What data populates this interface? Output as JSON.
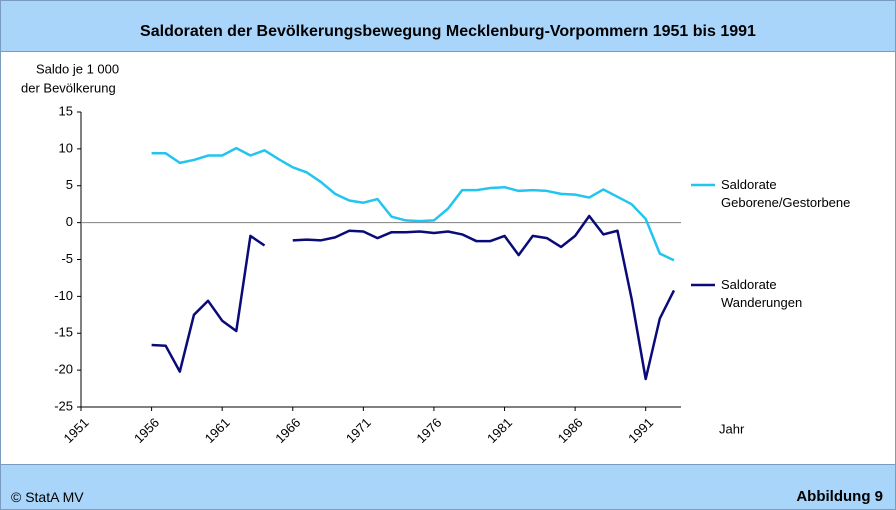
{
  "chart_data": {
    "type": "line",
    "title": "Saldoraten der Bevölkerungsbewegung Mecklenburg-Vorpommern 1951 bis 1991",
    "y_label": [
      "Saldo je 1 000",
      "der Bevölkerung"
    ],
    "x_label": "Jahr",
    "x": [
      1956,
      1957,
      1958,
      1959,
      1960,
      1961,
      1962,
      1963,
      1964,
      1965,
      1966,
      1967,
      1968,
      1969,
      1970,
      1971,
      1972,
      1973,
      1974,
      1975,
      1976,
      1977,
      1978,
      1979,
      1980,
      1981,
      1982,
      1983,
      1984,
      1985,
      1986,
      1987,
      1988,
      1989,
      1990,
      1991,
      1992,
      1993
    ],
    "series": [
      {
        "name": "Saldorate Geborene/Gestorbene",
        "color": "#22c4f0",
        "values": [
          9.4,
          9.4,
          8.1,
          8.5,
          9.1,
          9.1,
          10.1,
          9.1,
          9.8,
          8.6,
          7.5,
          6.8,
          5.5,
          3.9,
          3.0,
          2.7,
          3.2,
          0.8,
          0.3,
          0.2,
          0.3,
          1.9,
          4.4,
          4.4,
          4.7,
          4.8,
          4.3,
          4.4,
          4.3,
          3.9,
          3.8,
          3.4,
          4.5,
          3.5,
          2.5,
          0.5,
          -4.2,
          -5.1
        ]
      },
      {
        "name": "Saldorate Wanderungen",
        "color": "#0a0a78",
        "values": [
          -16.6,
          -16.7,
          -20.2,
          -12.5,
          -10.6,
          -13.3,
          -14.7,
          -1.8,
          -3.1,
          null,
          -2.4,
          -2.3,
          -2.4,
          -2.0,
          -1.1,
          -1.2,
          -2.1,
          -1.3,
          -1.3,
          -1.2,
          -1.4,
          -1.2,
          -1.6,
          -2.5,
          -2.5,
          -1.8,
          -4.4,
          -1.8,
          -2.1,
          -3.3,
          -1.8,
          0.9,
          -1.6,
          -1.1,
          -10.3,
          -21.2,
          -13.0,
          -9.2
        ]
      }
    ],
    "xlim": [
      1951,
      1993.5
    ],
    "xticks": [
      1951,
      1956,
      1961,
      1966,
      1971,
      1976,
      1981,
      1986,
      1991
    ],
    "ylim": [
      -25,
      15
    ],
    "yticks": [
      -25,
      -20,
      -15,
      -10,
      -5,
      0,
      5,
      10,
      15
    ],
    "zero_line": true
  },
  "footer": {
    "source": "© StatA MV",
    "figure": "Abbildung 9"
  }
}
